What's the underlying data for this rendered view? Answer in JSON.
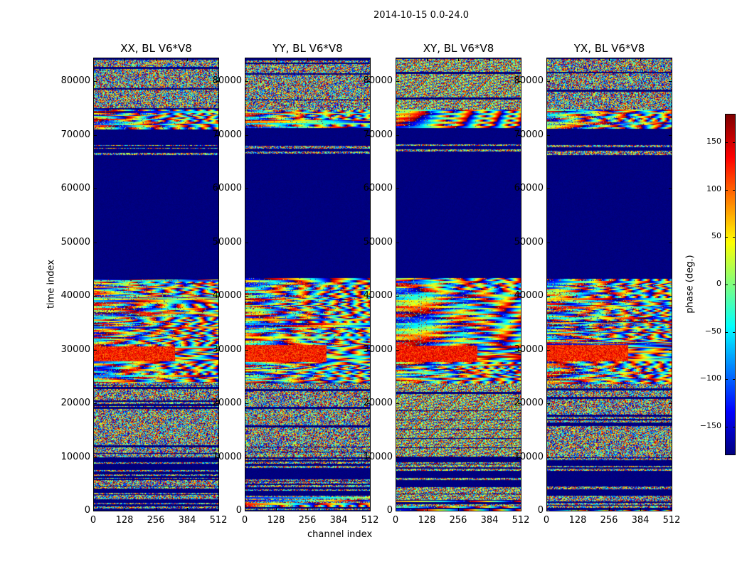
{
  "chart_data": {
    "type": "heatmap",
    "title": "2014-10-15 0.0-24.0",
    "panels": [
      {
        "title": "XX, BL V6*V8",
        "seed": 11
      },
      {
        "title": "YY, BL V6*V8",
        "seed": 23
      },
      {
        "title": "XY, BL V6*V8",
        "seed": 37
      },
      {
        "title": "YX, BL V6*V8",
        "seed": 53
      }
    ],
    "xlabel": "channel index",
    "ylabel": "time index",
    "xlim": [
      0,
      512
    ],
    "ylim": [
      0,
      84400
    ],
    "xticks": [
      0,
      128,
      256,
      384,
      512
    ],
    "yticks": [
      0,
      10000,
      20000,
      30000,
      40000,
      50000,
      60000,
      70000,
      80000
    ],
    "colormap": "jet",
    "colorbar": {
      "label": "phase (deg.)",
      "range": [
        -180,
        180
      ],
      "ticks": [
        -150,
        -100,
        -50,
        0,
        50,
        100,
        150
      ]
    },
    "bands": [
      {
        "from": 0,
        "to": 3000,
        "pattern": "mixed"
      },
      {
        "from": 3000,
        "to": 10000,
        "pattern": "sparse"
      },
      {
        "from": 10000,
        "to": 24000,
        "pattern": "noise"
      },
      {
        "from": 24000,
        "to": 28000,
        "pattern": "fringe"
      },
      {
        "from": 28000,
        "to": 31000,
        "pattern": "warm"
      },
      {
        "from": 31000,
        "to": 43500,
        "pattern": "fringe"
      },
      {
        "from": 43500,
        "to": 66300,
        "pattern": "flat"
      },
      {
        "from": 66300,
        "to": 69000,
        "pattern": "sparse"
      },
      {
        "from": 69000,
        "to": 71500,
        "pattern": "flat"
      },
      {
        "from": 71500,
        "to": 75000,
        "pattern": "fringe"
      },
      {
        "from": 75000,
        "to": 84400,
        "pattern": "noise"
      }
    ]
  }
}
